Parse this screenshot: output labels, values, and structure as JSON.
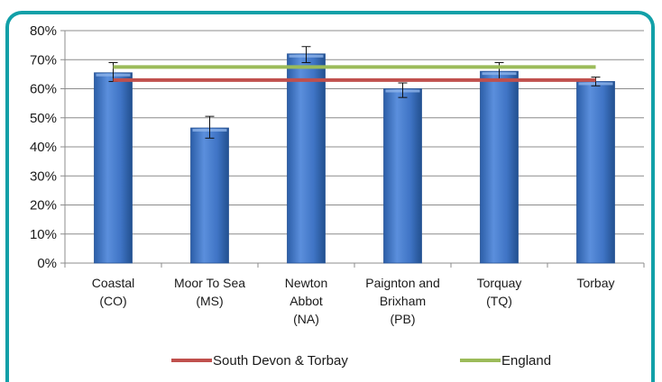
{
  "chart_data": {
    "type": "bar",
    "title": "",
    "xlabel": "",
    "ylabel": "",
    "ylim": [
      0,
      80
    ],
    "yticks": [
      "0%",
      "10%",
      "20%",
      "30%",
      "40%",
      "50%",
      "60%",
      "70%",
      "80%"
    ],
    "grid": true,
    "legend_position": "bottom",
    "categories": [
      [
        "Coastal",
        "(CO)"
      ],
      [
        "Moor To Sea",
        "(MS)"
      ],
      [
        "Newton",
        "Abbot",
        "(NA)"
      ],
      [
        "Paignton and",
        "Brixham",
        "(PB)"
      ],
      [
        "Torquay",
        "(TQ)"
      ],
      [
        "Torbay"
      ]
    ],
    "values": [
      65.5,
      46.5,
      72,
      60,
      66,
      62.5
    ],
    "error_bars": [
      [
        62.5,
        69
      ],
      [
        43,
        50.5
      ],
      [
        69,
        74.5
      ],
      [
        57,
        62
      ],
      [
        63,
        69
      ],
      [
        61,
        64
      ]
    ],
    "bar_color": "#3f74c5",
    "reference_lines": [
      {
        "name": "South Devon & Torbay",
        "value": 63,
        "color": "#c0504d"
      },
      {
        "name": "England",
        "value": 67.5,
        "color": "#9bbb59"
      }
    ]
  }
}
